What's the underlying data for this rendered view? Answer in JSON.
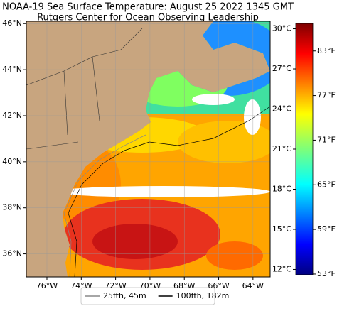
{
  "title": "NOAA-19 Sea Surface Temperature: August 25 2022 1345 GMT",
  "subtitle": "Rutgers Center for Ocean Observing Leadership",
  "map": {
    "xlim": [
      -77.2,
      -63
    ],
    "ylim": [
      35,
      46.1
    ],
    "xticks": [
      {
        "value": -76,
        "label": "76°W"
      },
      {
        "value": -74,
        "label": "74°W"
      },
      {
        "value": -72,
        "label": "72°W"
      },
      {
        "value": -70,
        "label": "70°W"
      },
      {
        "value": -68,
        "label": "68°W"
      },
      {
        "value": -66,
        "label": "66°W"
      },
      {
        "value": -64,
        "label": "64°W"
      }
    ],
    "yticks": [
      {
        "value": 36,
        "label": "36°N"
      },
      {
        "value": 38,
        "label": "38°N"
      },
      {
        "value": 40,
        "label": "40°N"
      },
      {
        "value": 42,
        "label": "42°N"
      },
      {
        "value": 44,
        "label": "44°N"
      },
      {
        "value": 46,
        "label": "46°N"
      }
    ],
    "grid": true
  },
  "colorbar": {
    "clim": [
      11.6,
      30.4
    ],
    "ticks": [
      {
        "value": 12,
        "label": "12°C"
      },
      {
        "value": 15,
        "label": "15°C"
      },
      {
        "value": 18,
        "label": "18°C"
      },
      {
        "value": 21,
        "label": "21°C"
      },
      {
        "value": 24,
        "label": "24°C"
      },
      {
        "value": 27,
        "label": "27°C"
      },
      {
        "value": 30,
        "label": "30°C"
      }
    ],
    "flim": [
      52.9,
      86.7
    ],
    "fticks": [
      {
        "value": 53,
        "label": "53°F"
      },
      {
        "value": 59,
        "label": "59°F"
      },
      {
        "value": 65,
        "label": "65°F"
      },
      {
        "value": 71,
        "label": "71°F"
      },
      {
        "value": 77,
        "label": "77°F"
      },
      {
        "value": 83,
        "label": "83°F"
      }
    ]
  },
  "legend": [
    {
      "label": "25fth, 45m",
      "color": "#888888"
    },
    {
      "label": "100fth, 182m",
      "color": "#000000"
    }
  ]
}
